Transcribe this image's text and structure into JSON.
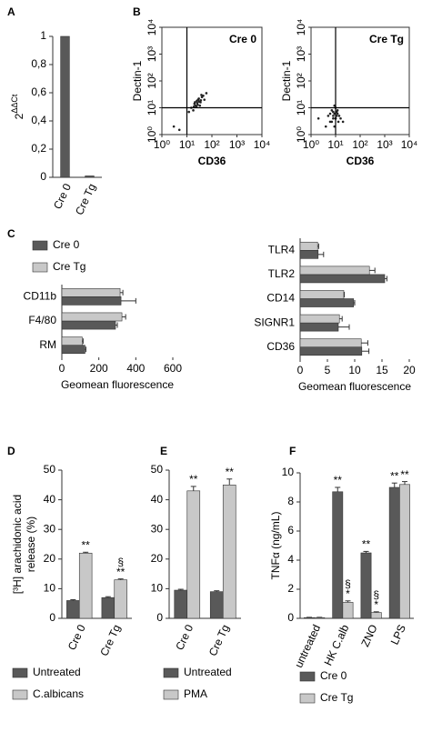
{
  "chart_data": [
    {
      "type": "bar",
      "panel": "A",
      "y_label": "2",
      "y_label_sup": "ΔΔCt",
      "categories": [
        "Cre 0",
        "Cre Tg"
      ],
      "series": [
        {
          "color": "#595959",
          "values": [
            1,
            0.01
          ]
        }
      ],
      "ylim": [
        0,
        1
      ],
      "yticks": [
        0,
        {
          "value": 0.2,
          "label": "0,2"
        },
        {
          "value": 0.4,
          "label": "0,4"
        },
        {
          "value": 0.6,
          "label": "0,6"
        },
        {
          "value": 0.8,
          "label": "0,8"
        },
        1
      ]
    },
    {
      "type": "scatter",
      "panel": "B",
      "x_label": "CD36",
      "y_label": "Dectin-1",
      "log_x": true,
      "log_y": true,
      "xlim": [
        1,
        10000
      ],
      "ylim": [
        1,
        10000
      ],
      "xticks": [
        {
          "value": 1,
          "label": "10⁰"
        },
        {
          "value": 10,
          "label": "10¹"
        },
        {
          "value": 100,
          "label": "10²"
        },
        {
          "value": 1000,
          "label": "10³"
        },
        {
          "value": 10000,
          "label": "10⁴"
        }
      ],
      "yticks": [
        {
          "value": 1,
          "label": "10⁰"
        },
        {
          "value": 10,
          "label": "10¹"
        },
        {
          "value": 100,
          "label": "10²"
        },
        {
          "value": 1000,
          "label": "10³"
        },
        {
          "value": 10000,
          "label": "10⁴"
        }
      ],
      "gate_x": 10,
      "gate_y": 10,
      "color": "#222222",
      "plots": [
        {
          "title": "Cre 0",
          "x": [
            15,
            20,
            25,
            30,
            35,
            40,
            22,
            28,
            45,
            18,
            33,
            26,
            50,
            38,
            12,
            60,
            24,
            31,
            3,
            5,
            27,
            21,
            36,
            19
          ],
          "y": [
            10,
            14,
            18,
            22,
            16,
            25,
            12,
            20,
            28,
            8,
            12,
            15,
            20,
            30,
            7,
            35,
            11,
            17,
            2,
            1.5,
            13,
            16,
            19,
            11
          ]
        },
        {
          "title": "Cre Tg",
          "x": [
            6,
            8,
            10,
            12,
            7,
            9,
            11,
            14,
            8,
            10,
            13,
            6,
            9,
            16,
            5,
            20,
            4,
            12,
            2,
            7,
            9,
            11,
            8,
            10
          ],
          "y": [
            3,
            5,
            4,
            6,
            8,
            2,
            7,
            5,
            4,
            10,
            3,
            6,
            12,
            4,
            5,
            3,
            2,
            8,
            4,
            3,
            6,
            5,
            7,
            4
          ]
        }
      ]
    },
    {
      "type": "barh",
      "panel": "C",
      "x_label": "Geomean fluorescence",
      "categories": [
        "CD11b",
        "F4/80",
        "RM"
      ],
      "series": [
        {
          "name": "Cre 0",
          "color": "#595959",
          "values": [
            320,
            290,
            125
          ],
          "errors": [
            80,
            10,
            5
          ]
        },
        {
          "name": "Cre Tg",
          "color": "#c8c8c8",
          "values": [
            315,
            325,
            110
          ],
          "errors": [
            15,
            20,
            5
          ]
        }
      ],
      "xlim": [
        0,
        600
      ],
      "xticks": [
        0,
        200,
        400,
        600
      ]
    },
    {
      "type": "barh",
      "x_label": "Geomean fluorescence",
      "categories": [
        "TLR4",
        "TLR2",
        "CD14",
        "SIGNR1",
        "CD36"
      ],
      "series": [
        {
          "color": "#595959",
          "values": [
            3.3,
            15.5,
            9.8,
            7,
            11.3
          ],
          "errors": [
            1,
            0.4,
            0.2,
            2,
            1.3
          ]
        },
        {
          "color": "#c8c8c8",
          "values": [
            3.2,
            12.7,
            8,
            7.2,
            11.2
          ],
          "errors": [
            0.2,
            1,
            0.1,
            0.5,
            1.2
          ]
        }
      ],
      "xlim": [
        0,
        20
      ],
      "xticks": [
        0,
        5,
        10,
        15,
        20
      ]
    },
    {
      "type": "bar",
      "panel": "D",
      "y_label": [
        "[³H] arachidonic acid",
        "release (%)"
      ],
      "categories": [
        "Cre 0",
        "Cre Tg"
      ],
      "series": [
        {
          "name": "Untreated",
          "color": "#595959",
          "values": [
            6,
            7
          ],
          "errors": [
            0.3,
            0.3
          ]
        },
        {
          "name": "C.albicans",
          "color": "#c8c8c8",
          "values": [
            22,
            13
          ],
          "errors": [
            0.3,
            0.3
          ],
          "annotations": [
            [
              "**"
            ],
            [
              "**",
              "§"
            ]
          ]
        }
      ],
      "ylim": [
        0,
        50
      ],
      "yticks": [
        0,
        10,
        20,
        30,
        40,
        50
      ]
    },
    {
      "type": "bar",
      "panel": "E",
      "categories": [
        "Cre 0",
        "Cre Tg"
      ],
      "series": [
        {
          "name": "Untreated",
          "color": "#595959",
          "values": [
            9.5,
            9
          ],
          "errors": [
            0.3,
            0.3
          ]
        },
        {
          "name": "PMA",
          "color": "#c8c8c8",
          "values": [
            43,
            45
          ],
          "errors": [
            1.5,
            2
          ],
          "annotations": [
            [
              "**"
            ],
            [
              "**"
            ]
          ]
        }
      ],
      "ylim": [
        0,
        50
      ],
      "yticks": [
        0,
        10,
        20,
        30,
        40,
        50
      ]
    },
    {
      "type": "bar",
      "panel": "F",
      "y_label": "TNFα (ng/mL)",
      "categories": [
        "untreated",
        "HK C.alb",
        "ZNO",
        "LPS"
      ],
      "series": [
        {
          "name": "Cre 0",
          "color": "#595959",
          "values": [
            0.05,
            8.7,
            4.5,
            9.0
          ],
          "errors": [
            0.02,
            0.3,
            0.1,
            0.3
          ],
          "annotations": [
            null,
            [
              "**"
            ],
            [
              "**"
            ],
            [
              "**"
            ]
          ]
        },
        {
          "name": "Cre Tg",
          "color": "#c8c8c8",
          "values": [
            0.05,
            1.1,
            0.4,
            9.2
          ],
          "errors": [
            0.02,
            0.1,
            0.05,
            0.2
          ],
          "annotations": [
            null,
            [
              "*",
              "§"
            ],
            [
              "*",
              "§"
            ],
            [
              "**"
            ]
          ]
        }
      ],
      "ylim": [
        0,
        10
      ],
      "yticks": [
        0,
        2,
        4,
        6,
        8,
        10
      ]
    }
  ]
}
